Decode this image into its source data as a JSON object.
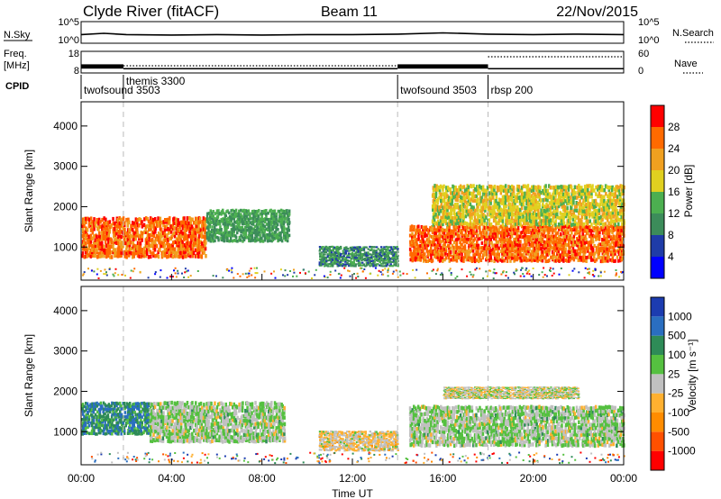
{
  "header": {
    "station": "Clyde River (fitACF)",
    "beam": "Beam 11",
    "date": "22/Nov/2015"
  },
  "sky_panel": {
    "left_label": "N.Sky",
    "left_ticks": [
      "10^5",
      "10^0"
    ],
    "right_ticks": [
      "10^5",
      "10^0"
    ],
    "right_label": "N.Search"
  },
  "freq_panel": {
    "left_label_1": "Freq.",
    "left_label_2": "[MHz]",
    "left_ticks": [
      "18",
      "8"
    ],
    "right_ticks": [
      "60",
      "0"
    ],
    "right_label": "Nave"
  },
  "cpid": {
    "label": "CPID",
    "entries": [
      {
        "name": "twofsound 3503",
        "start_hour": 0.0
      },
      {
        "name": "themis 3300",
        "start_hour": 1.87
      },
      {
        "name": "twofsound 3503",
        "start_hour": 14.0
      },
      {
        "name": "rbsp 200",
        "start_hour": 18.0
      }
    ]
  },
  "x_axis": {
    "label": "Time UT",
    "ticks": [
      "00:00",
      "04:00",
      "08:00",
      "12:00",
      "16:00",
      "20:00",
      "00:00"
    ]
  },
  "power_panel": {
    "ylabel": "Slant Range [km]",
    "yticks": [
      "4000",
      "3000",
      "2000",
      "1000"
    ],
    "colorbar_label": "Power [dB]",
    "colorbar_ticks": [
      "28",
      "24",
      "20",
      "16",
      "12",
      "8",
      "4"
    ],
    "colors": [
      "#0000ff",
      "#1f3ca8",
      "#3c8c5a",
      "#4caf50",
      "#e0d020",
      "#f0a020",
      "#ff6a00",
      "#ff0000"
    ]
  },
  "velocity_panel": {
    "ylabel": "Slant Range [km]",
    "yticks": [
      "4000",
      "3000",
      "2000",
      "1000"
    ],
    "colorbar_label": "Velocity [m s⁻¹]",
    "colorbar_ticks": [
      "1000",
      "500",
      "100",
      "25",
      "-25",
      "-100",
      "-500",
      "-1000"
    ],
    "colors": [
      "#1c3cb0",
      "#2a6ec0",
      "#2e8b57",
      "#55c040",
      "#c0c0c0",
      "#ffb030",
      "#ff8c00",
      "#ff5000",
      "#ff0000"
    ]
  },
  "chart_data": [
    {
      "type": "line",
      "name": "N.Sky / N.Search noise",
      "x_range_hours": [
        0,
        24
      ],
      "ylim_log10": [
        0,
        5
      ],
      "x": [
        0,
        1,
        2,
        4,
        6,
        8,
        10,
        12,
        14,
        16,
        18,
        20,
        22,
        24
      ],
      "values": [
        2.0,
        2.3,
        2.0,
        1.9,
        2.0,
        1.9,
        2.0,
        2.0,
        2.1,
        2.4,
        2.1,
        2.0,
        2.1,
        2.0
      ]
    },
    {
      "type": "line",
      "name": "Frequency and Nave",
      "x_range_hours": [
        0,
        24
      ],
      "freq_ylim_mhz": [
        8,
        18
      ],
      "nave_ylim": [
        0,
        60
      ],
      "segments": [
        {
          "start_hour": 0.0,
          "end_hour": 1.87,
          "freq_mhz": [
            10.0,
            12.0
          ],
          "nave": 20
        },
        {
          "start_hour": 1.87,
          "end_hour": 14.0,
          "freq_mhz": [
            10.0
          ],
          "nave": 20
        },
        {
          "start_hour": 14.0,
          "end_hour": 18.0,
          "freq_mhz": [
            10.0,
            12.0
          ],
          "nave": 20
        },
        {
          "start_hour": 18.0,
          "end_hour": 24.0,
          "freq_mhz": [
            10.0
          ],
          "nave": 45
        }
      ]
    },
    {
      "type": "heatmap",
      "name": "Power",
      "x_range_hours": [
        0,
        24
      ],
      "ylim_km": [
        180,
        4600
      ],
      "value_range_db": [
        0,
        32
      ],
      "regions": [
        {
          "t0": 0.0,
          "t1": 5.5,
          "r0": 700,
          "r1": 1700,
          "value": 26
        },
        {
          "t0": 5.5,
          "t1": 9.2,
          "r0": 1100,
          "r1": 1900,
          "value": 12
        },
        {
          "t0": 10.5,
          "t1": 14.0,
          "r0": 500,
          "r1": 1000,
          "value": 10
        },
        {
          "t0": 14.5,
          "t1": 24.0,
          "r0": 600,
          "r1": 1500,
          "value": 26
        },
        {
          "t0": 15.5,
          "t1": 24.0,
          "r0": 1500,
          "r1": 2500,
          "value": 18
        }
      ]
    },
    {
      "type": "heatmap",
      "name": "Velocity",
      "x_range_hours": [
        0,
        24
      ],
      "ylim_km": [
        180,
        4600
      ],
      "value_range_ms": [
        -1000,
        1000
      ],
      "regions": [
        {
          "t0": 0.0,
          "t1": 3.0,
          "r0": 900,
          "r1": 1700,
          "value": 500
        },
        {
          "t0": 3.0,
          "t1": 9.0,
          "r0": 700,
          "r1": 1700,
          "value": 100
        },
        {
          "t0": 10.5,
          "t1": 14.0,
          "r0": 500,
          "r1": 1000,
          "value": -100
        },
        {
          "t0": 14.5,
          "t1": 18.0,
          "r0": 600,
          "r1": 1600,
          "value": 100
        },
        {
          "t0": 18.0,
          "t1": 24.0,
          "r0": 600,
          "r1": 1600,
          "value": 100
        },
        {
          "t0": 16.0,
          "t1": 22.0,
          "r0": 1800,
          "r1": 2100,
          "value": 0
        }
      ]
    }
  ]
}
